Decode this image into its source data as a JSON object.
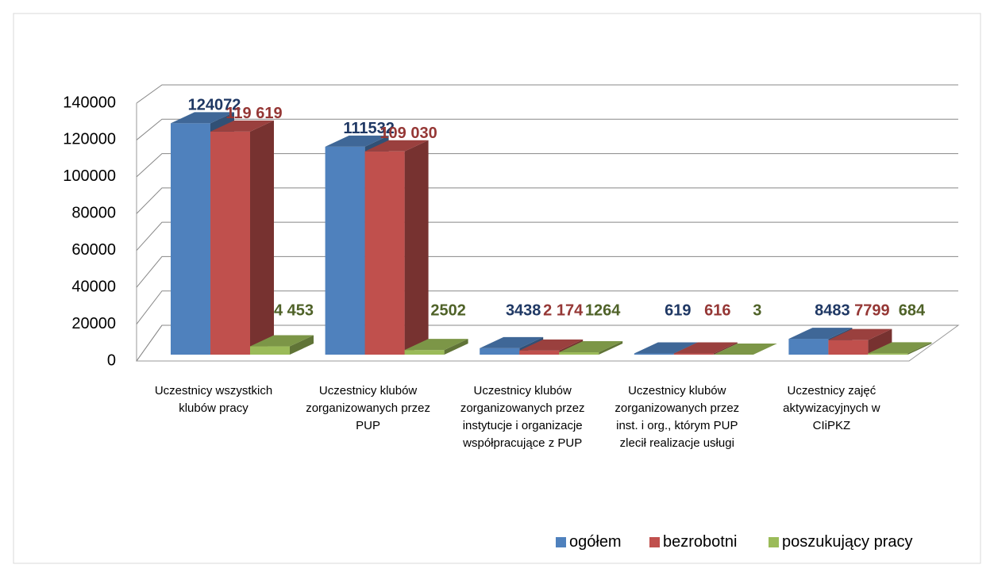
{
  "chart_data": {
    "type": "bar3d",
    "categories": [
      "Uczestnicy wszystkich klubów pracy",
      "Uczestnicy klubów zorganizowanych przez PUP",
      "Uczestnicy klubów zorganizowanych przez instytucje i organizacje współpracujące z PUP",
      "Uczestnicy klubów zorganizowanych przez inst. i org., którym PUP zlecił realizacje usługi",
      "Uczestnicy zajęć aktywizacyjnych w CIiPKZ"
    ],
    "series": [
      {
        "name": "ogółem",
        "color": "#4f81bd",
        "label_color": "#1f3864",
        "values": [
          124072,
          111532,
          3438,
          619,
          8483
        ]
      },
      {
        "name": "bezrobotni",
        "color": "#c0504d",
        "label_color": "#953735",
        "values": [
          119619,
          109030,
          2174,
          616,
          7799
        ],
        "value_labels": [
          "119 619",
          "109 030",
          "2 174",
          "616",
          "7799"
        ]
      },
      {
        "name": "poszukujący pracy",
        "color": "#9bbb59",
        "label_color": "#4f6228",
        "values": [
          4453,
          2502,
          1264,
          3,
          684
        ],
        "value_labels": [
          "4 453",
          "2502",
          "1264",
          "3",
          "684"
        ]
      }
    ],
    "ylim": [
      0,
      140000
    ],
    "yticks": [
      0,
      20000,
      40000,
      60000,
      80000,
      100000,
      120000,
      140000
    ],
    "grid": true,
    "legend": "bottom-right"
  }
}
